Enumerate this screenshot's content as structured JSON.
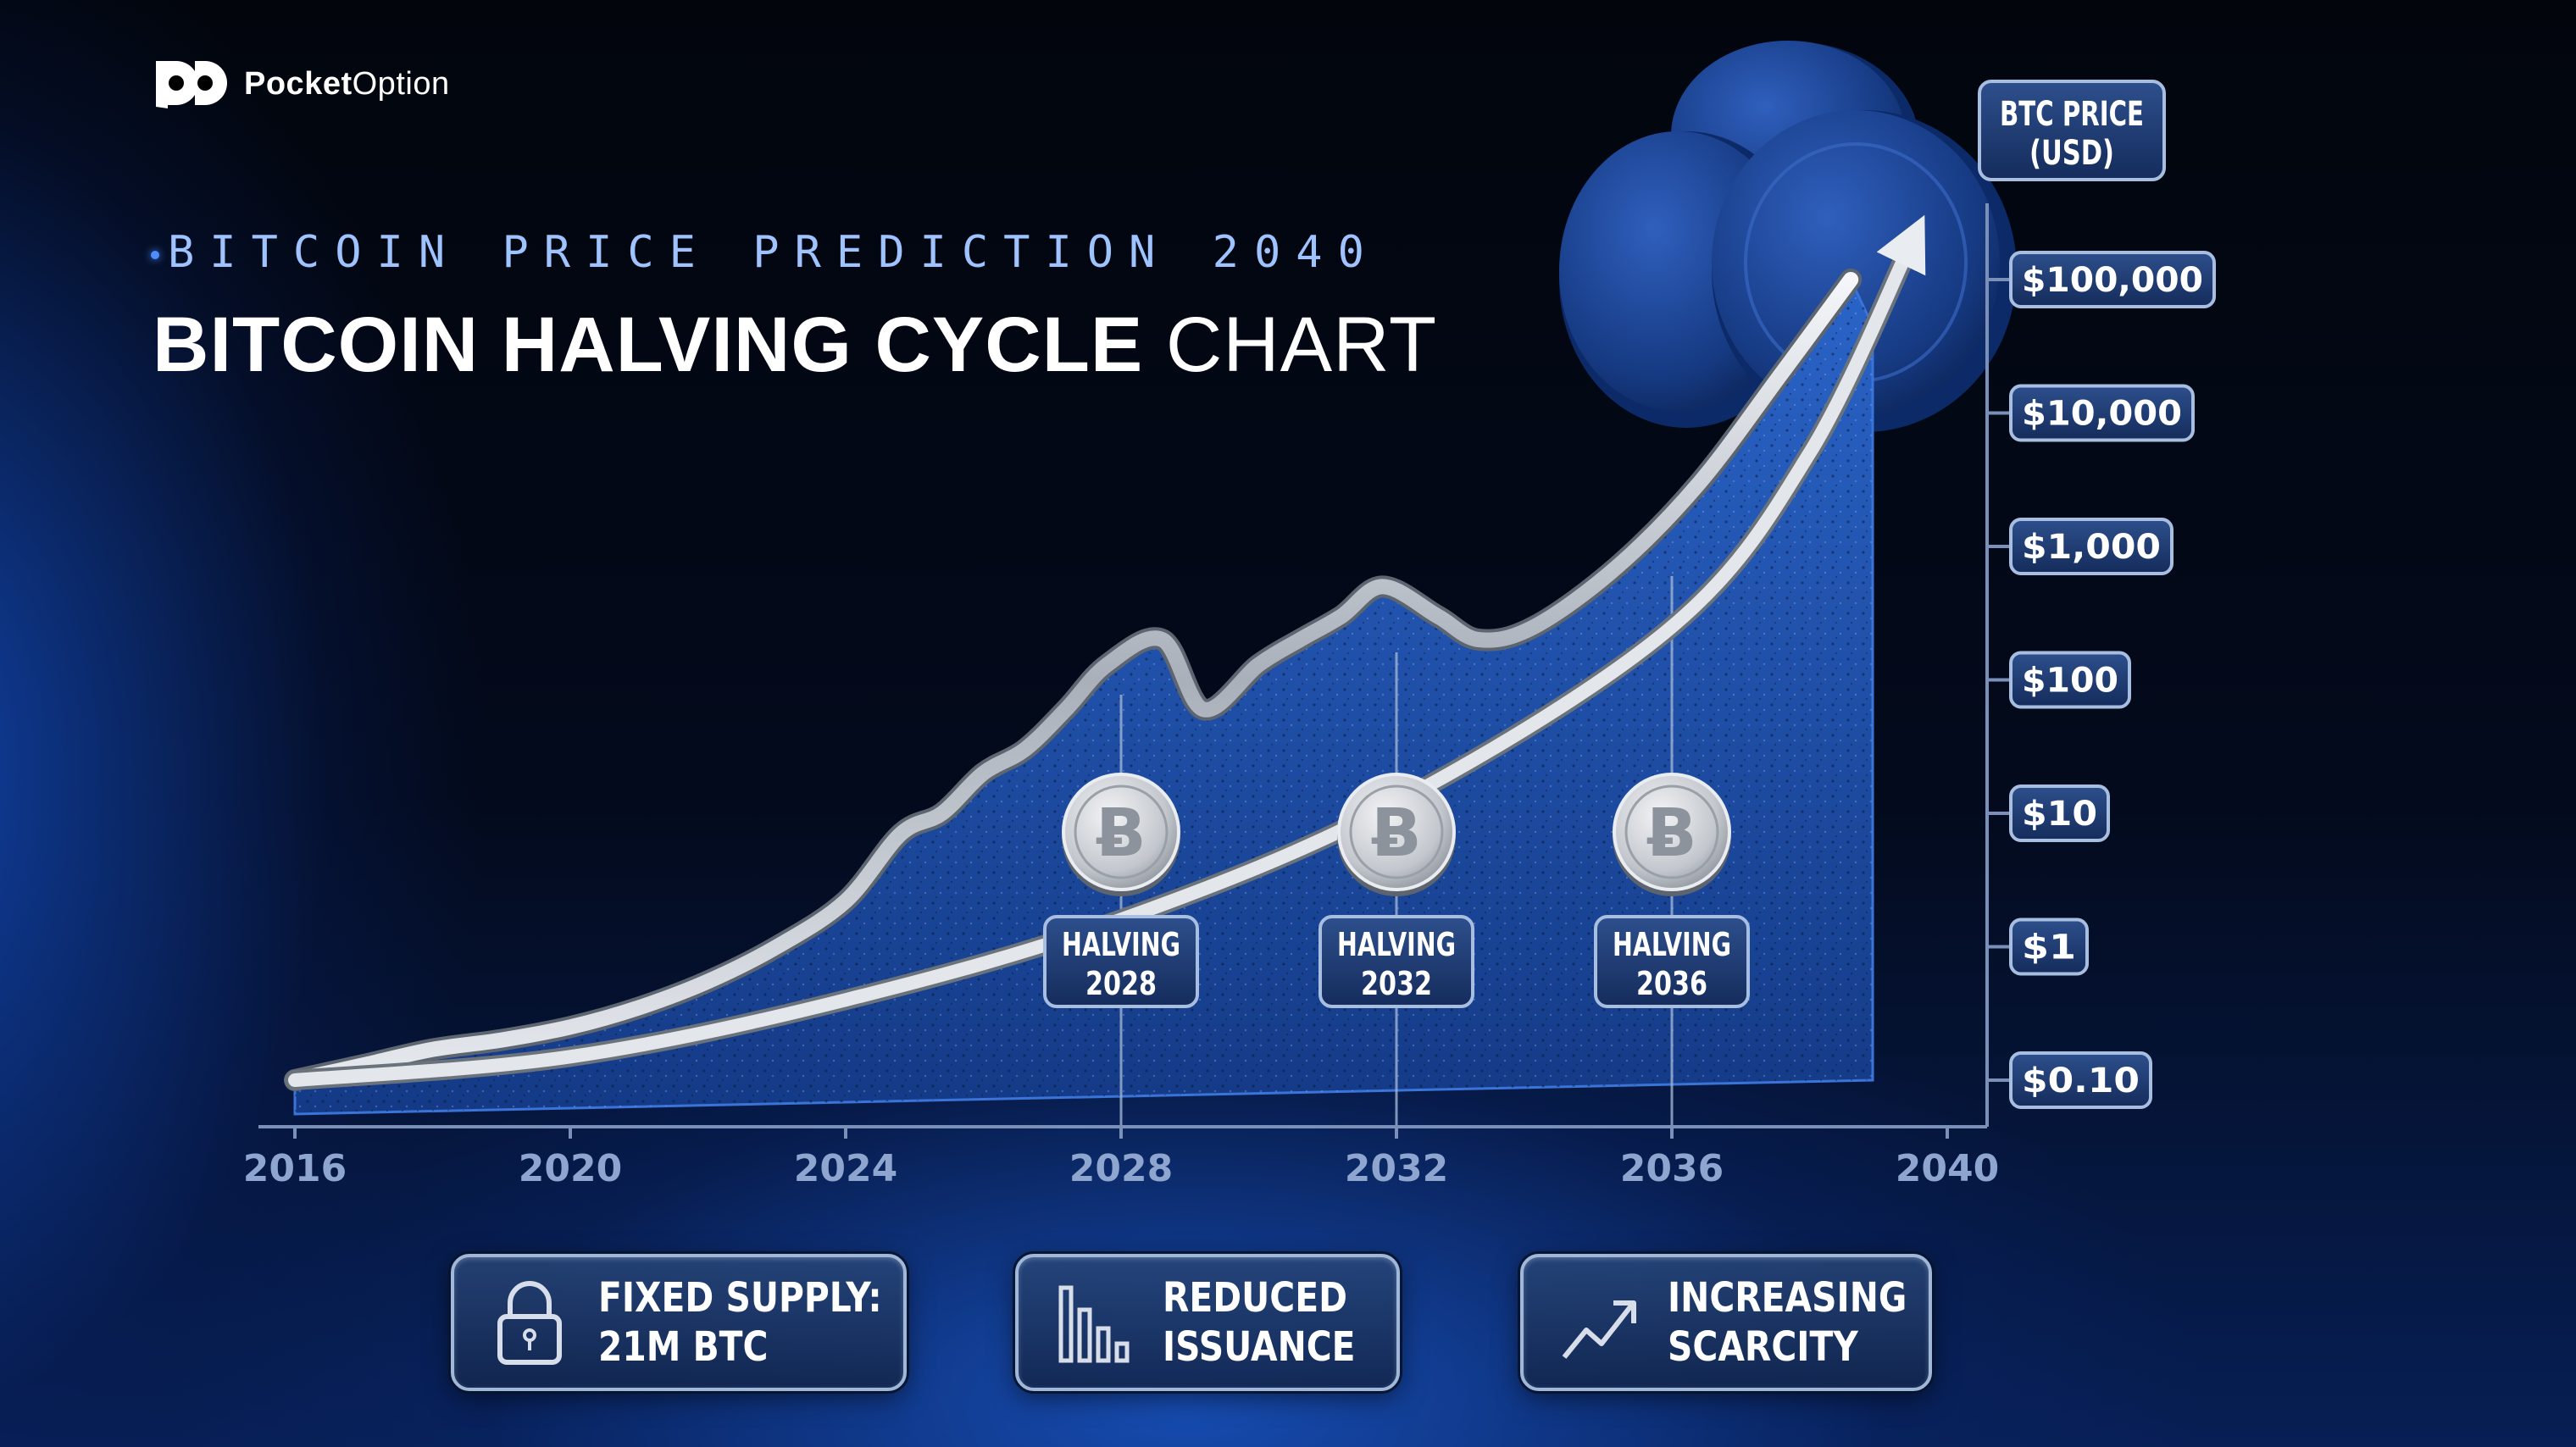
{
  "brand": {
    "name_bold": "Pocket",
    "name_light": "Option"
  },
  "header": {
    "subtitle": "BITCOIN PRICE PREDICTION 2040",
    "title_bold": "BITCOIN HALVING CYCLE",
    "title_light": " CHART"
  },
  "chart_data": {
    "type": "line",
    "title": "BITCOIN HALVING CYCLE CHART",
    "ylabel": "BTC PRICE (USD)",
    "ylabel_lines": [
      "BTC PRICE",
      "(USD)"
    ],
    "xlabel": "",
    "x_ticks": [
      2016,
      2020,
      2024,
      2028,
      2032,
      2036,
      2040
    ],
    "y_scale": "log",
    "y_ticks": [
      {
        "value": 0.1,
        "label": "$0.10"
      },
      {
        "value": 1,
        "label": "$1"
      },
      {
        "value": 10,
        "label": "$10"
      },
      {
        "value": 100,
        "label": "$100"
      },
      {
        "value": 1000,
        "label": "$1,000"
      },
      {
        "value": 10000,
        "label": "$10,000"
      },
      {
        "value": 100000,
        "label": "$100,000"
      }
    ],
    "xlim": [
      2016,
      2040
    ],
    "ylim": [
      0.1,
      100000
    ],
    "grid": false,
    "series": [
      {
        "kind": "price-path",
        "color": "#c9ced6",
        "x": [
          2016,
          2017,
          2018,
          2019,
          2020,
          2021,
          2022,
          2023,
          2024,
          2024.8,
          2025.4,
          2026,
          2026.6,
          2027.2,
          2027.8,
          2028.6,
          2029.2,
          2030,
          2030.6,
          2031.2,
          2031.8,
          2032.6,
          2033.2,
          2034,
          2035.2,
          2036.4,
          2037.6,
          2038.6
        ],
        "y": [
          0.1,
          0.13,
          0.17,
          0.2,
          0.25,
          0.35,
          0.55,
          1.0,
          2.2,
          7.0,
          10.0,
          20.0,
          30.0,
          60.0,
          130.0,
          200.0,
          60.0,
          130.0,
          200.0,
          300.0,
          500.0,
          300.0,
          200.0,
          250.0,
          700.0,
          3000.0,
          20000.0,
          100000.0
        ]
      },
      {
        "kind": "trend-arrow",
        "color": "#d8dde4",
        "x": [
          2016,
          2020,
          2024,
          2028,
          2032,
          2036,
          2038,
          2039.5
        ],
        "y": [
          0.1,
          0.15,
          0.4,
          1.6,
          12.0,
          250.0,
          5000.0,
          200000.0
        ]
      }
    ],
    "halvings": [
      {
        "year": 2028,
        "label": "HALVING",
        "year_label": "2028"
      },
      {
        "year": 2032,
        "label": "HALVING",
        "year_label": "2032"
      },
      {
        "year": 2036,
        "label": "HALVING",
        "year_label": "2036"
      }
    ],
    "colors": {
      "background": "#030a1c",
      "area_fill": "#1d4fa8",
      "accent": "#2f6bdc",
      "label_box": "#1f3e78"
    }
  },
  "features": [
    {
      "icon": "lock-icon",
      "line1": "FIXED SUPPLY:",
      "line2": "21M BTC"
    },
    {
      "icon": "bar-chart-decline-icon",
      "line1": "REDUCED",
      "line2": "ISSUANCE"
    },
    {
      "icon": "trending-up-icon",
      "line1": "INCREASING",
      "line2": "SCARCITY"
    }
  ]
}
